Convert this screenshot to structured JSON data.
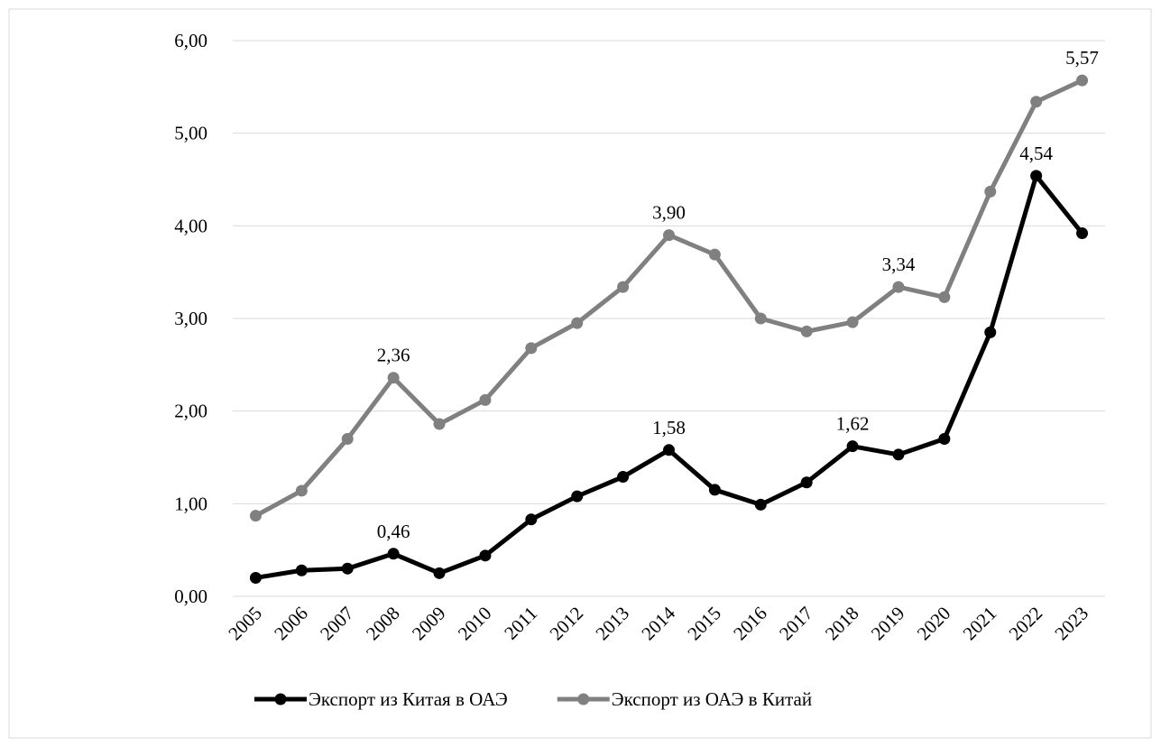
{
  "chart_data": {
    "type": "line",
    "categories": [
      "2005",
      "2006",
      "2007",
      "2008",
      "2009",
      "2010",
      "2011",
      "2012",
      "2013",
      "2014",
      "2015",
      "2016",
      "2017",
      "2018",
      "2019",
      "2020",
      "2021",
      "2022",
      "2023"
    ],
    "series": [
      {
        "name": "Экспорт из Китая в ОАЭ",
        "color": "#000000",
        "values": [
          0.2,
          0.28,
          0.3,
          0.46,
          0.25,
          0.44,
          0.83,
          1.08,
          1.29,
          1.58,
          1.15,
          0.99,
          1.23,
          1.62,
          1.53,
          1.7,
          2.85,
          4.54,
          3.92
        ],
        "value_labels": [
          null,
          null,
          null,
          "0,46",
          null,
          null,
          null,
          null,
          null,
          "1,58",
          null,
          null,
          null,
          "1,62",
          null,
          null,
          null,
          "4,54",
          null
        ]
      },
      {
        "name": "Экспорт из ОАЭ в Китай",
        "color": "#808080",
        "values": [
          0.87,
          1.14,
          1.7,
          2.36,
          1.86,
          2.12,
          2.68,
          2.95,
          3.34,
          3.9,
          3.69,
          3.0,
          2.86,
          2.96,
          3.34,
          3.23,
          4.37,
          5.34,
          5.57
        ],
        "value_labels": [
          null,
          null,
          null,
          "2,36",
          null,
          null,
          null,
          null,
          null,
          "3,90",
          null,
          null,
          null,
          null,
          "3,34",
          null,
          null,
          null,
          "5,57"
        ]
      }
    ],
    "ylim": [
      0,
      6
    ],
    "yticks": [
      {
        "value": 0,
        "label": "0,00"
      },
      {
        "value": 1,
        "label": "1,00"
      },
      {
        "value": 2,
        "label": "2,00"
      },
      {
        "value": 3,
        "label": "3,00"
      },
      {
        "value": 4,
        "label": "4,00"
      },
      {
        "value": 5,
        "label": "5,00"
      },
      {
        "value": 6,
        "label": "6,00"
      }
    ],
    "grid": true,
    "legend": "bottom"
  }
}
